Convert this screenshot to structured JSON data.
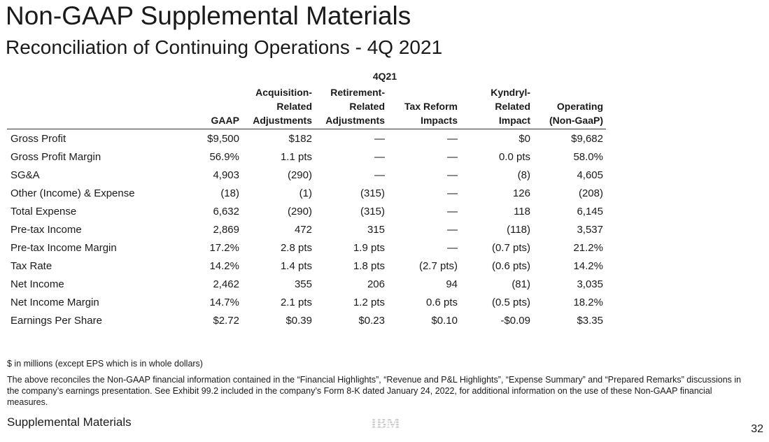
{
  "title": "Non-GAAP Supplemental Materials",
  "subtitle": "Reconciliation of Continuing Operations - 4Q 2021",
  "table": {
    "period": "4Q21",
    "columns": [
      [
        "",
        "",
        "GAAP"
      ],
      [
        "Acquisition-",
        "Related",
        "Adjustments"
      ],
      [
        "Retirement-",
        "Related",
        "Adjustments"
      ],
      [
        "",
        "Tax Reform",
        "Impacts"
      ],
      [
        "Kyndryl-",
        "Related",
        "Impact"
      ],
      [
        "",
        "Operating",
        "(Non-GaaP)"
      ]
    ],
    "rows": [
      {
        "label": "Gross Profit",
        "values": [
          "$9,500",
          "$182",
          "—",
          "—",
          "$0",
          "$9,682"
        ]
      },
      {
        "label": "Gross Profit Margin",
        "values": [
          "56.9%",
          "1.1 pts",
          "—",
          "—",
          "0.0 pts",
          "58.0%"
        ]
      },
      {
        "label": "SG&A",
        "values": [
          "4,903",
          "(290)",
          "—",
          "—",
          "(8)",
          "4,605"
        ]
      },
      {
        "label": "Other (Income) & Expense",
        "values": [
          "(18)",
          "(1)",
          "(315)",
          "—",
          "126",
          "(208)"
        ]
      },
      {
        "label": "Total Expense",
        "values": [
          "6,632",
          "(290)",
          "(315)",
          "—",
          "118",
          "6,145"
        ]
      },
      {
        "label": "Pre-tax Income",
        "values": [
          "2,869",
          "472",
          "315",
          "—",
          "(118)",
          "3,537"
        ]
      },
      {
        "label": "Pre-tax Income Margin",
        "values": [
          "17.2%",
          "2.8 pts",
          "1.9 pts",
          "—",
          "(0.7 pts)",
          "21.2%"
        ]
      },
      {
        "label": "Tax Rate",
        "values": [
          "14.2%",
          "1.4 pts",
          "1.8 pts",
          "(2.7 pts)",
          "(0.6 pts)",
          "14.2%"
        ]
      },
      {
        "label": "Net Income",
        "values": [
          "2,462",
          "355",
          "206",
          "94",
          "(81)",
          "3,035"
        ]
      },
      {
        "label": "Net Income Margin",
        "values": [
          "14.7%",
          "2.1 pts",
          "1.2 pts",
          "0.6 pts",
          "(0.5 pts)",
          "18.2%"
        ]
      },
      {
        "label": "Earnings Per Share",
        "values": [
          "$2.72",
          "$0.39",
          "$0.23",
          "$0.10",
          "-$0.09",
          "$3.35"
        ]
      }
    ]
  },
  "notes": {
    "units": "$ in millions (except EPS which is in whole dollars)",
    "text": "The above reconciles the Non-GAAP financial information contained in the “Financial Highlights”, “Revenue and P&L Highlights”, “Expense Summary” and “Prepared Remarks” discussions in the company’s earnings presentation. See Exhibit 99.2 included in the company’s Form 8-K dated January 24, 2022, for additional information on the use of these Non-GAAP financial measures."
  },
  "footer": {
    "section": "Supplemental Materials",
    "logo": "IBM",
    "page_number": "32"
  },
  "colors": {
    "text": "#1a1a1a",
    "logo": "#c8c8c8"
  }
}
